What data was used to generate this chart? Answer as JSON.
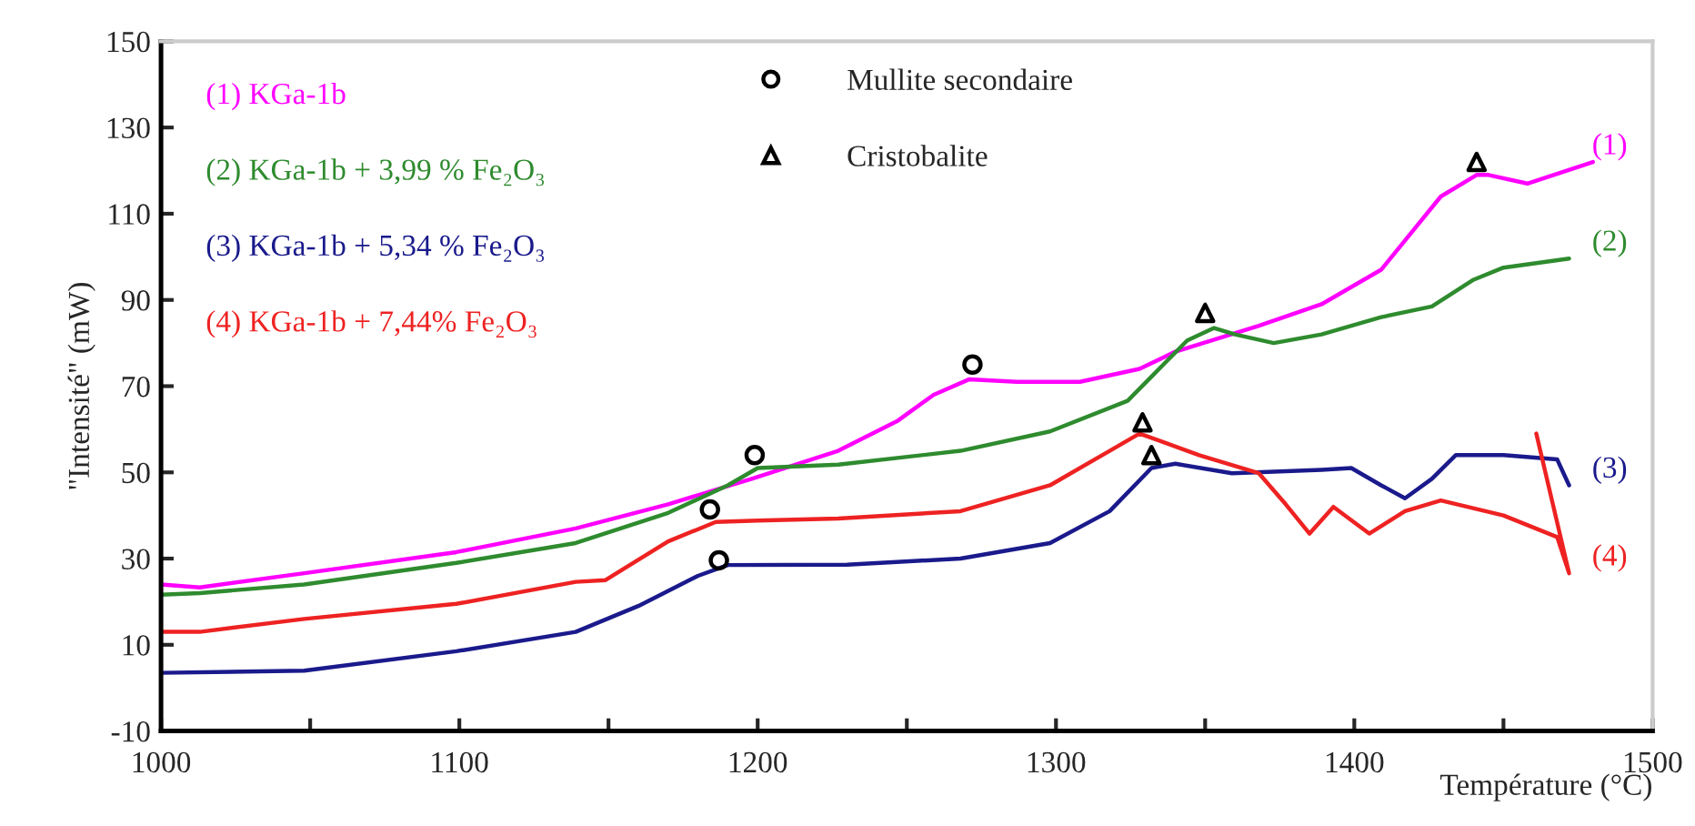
{
  "chart_data": {
    "type": "line",
    "xlabel": "Température (°C)",
    "ylabel": "\"Intensité\" (mW)",
    "xlim": [
      1000,
      1500
    ],
    "ylim": [
      -10,
      150
    ],
    "xticks": [
      1000,
      {
        "value": 1050,
        "label": null
      },
      1100,
      {
        "value": 1150,
        "label": null
      },
      1200,
      {
        "value": 1250,
        "label": null
      },
      1300,
      {
        "value": 1350,
        "label": null
      },
      1400,
      {
        "value": 1450,
        "label": null
      },
      1500
    ],
    "yticks": [
      -10,
      10,
      30,
      50,
      70,
      90,
      110,
      130,
      150
    ],
    "grid": false,
    "legend": "top",
    "marker": "none",
    "line_style": "solid",
    "series": [
      {
        "name": "(1) KGa-1b",
        "color": "#ff00ff",
        "x": [
          1000,
          1013,
          1048,
          1099,
          1139,
          1170,
          1198,
          1227,
          1247,
          1259,
          1271,
          1287,
          1308,
          1328,
          1340,
          1368,
          1389,
          1409,
          1429,
          1441,
          1445,
          1458,
          1480
        ],
        "values": [
          24,
          23.3,
          26.6,
          31.5,
          37,
          42.6,
          48.5,
          55,
          62,
          68,
          71.6,
          71,
          71,
          74,
          78,
          84,
          89,
          97,
          114,
          119,
          119,
          117,
          122
        ]
      },
      {
        "name": "(2) KGa-1b + 3,99 % Fe₂O₃",
        "color": "#2e8b2e",
        "x": [
          1000,
          1013,
          1048,
          1099,
          1139,
          1170,
          1190,
          1200,
          1227,
          1268,
          1298,
          1324,
          1336,
          1344,
          1353,
          1360,
          1373,
          1389,
          1409,
          1426,
          1440,
          1450,
          1472
        ],
        "values": [
          21.6,
          22,
          24,
          29,
          33.6,
          40.6,
          47,
          51,
          51.8,
          55,
          59.5,
          66.6,
          75,
          80.6,
          83.5,
          82,
          80,
          82,
          86,
          88.5,
          94.7,
          97.5,
          99.6
        ]
      },
      {
        "name": "(3) KGa-1b + 5,34 % Fe₂O₃",
        "color": "#1a1a8c",
        "x": [
          1000,
          1048,
          1099,
          1139,
          1160,
          1180,
          1190,
          1230,
          1268,
          1298,
          1318,
          1332,
          1340,
          1359,
          1389,
          1399,
          1409,
          1417,
          1426,
          1434,
          1450,
          1468,
          1472
        ],
        "values": [
          3.5,
          4,
          8.5,
          13,
          19,
          26,
          28.5,
          28.6,
          30,
          33.6,
          41,
          51,
          52,
          49.8,
          50.6,
          51,
          47,
          44,
          48.5,
          54,
          54,
          53,
          47
        ]
      },
      {
        "name": "(4) KGa-1b + 7,44% Fe₂O₃",
        "color": "#ee2222",
        "x": [
          1000,
          1013,
          1048,
          1099,
          1139,
          1149,
          1170,
          1186,
          1200,
          1227,
          1268,
          1298,
          1318,
          1328,
          1348,
          1368,
          1377,
          1385,
          1393,
          1405,
          1417,
          1429,
          1450,
          1468,
          1472,
          1461
        ],
        "values": [
          13,
          13,
          16,
          19.5,
          24.6,
          25,
          34,
          38.5,
          38.8,
          39.3,
          41,
          47,
          55,
          59,
          54,
          49.8,
          42.6,
          35.8,
          42,
          35.8,
          41,
          43.5,
          40,
          35,
          26.6,
          59
        ]
      },
      {
        "name": "Mullite secondaire",
        "type": "scatter",
        "marker": "circle",
        "color": "#000000",
        "x": [
          1184,
          1187,
          1199,
          1272
        ],
        "values": [
          41.4,
          29.6,
          54,
          75
        ]
      },
      {
        "name": "Cristobalite",
        "type": "scatter",
        "marker": "triangle",
        "color": "#000000",
        "x": [
          1329,
          1332,
          1350,
          1441
        ],
        "values": [
          61.6,
          54,
          87,
          122
        ]
      }
    ],
    "annotations": [
      "(1)",
      "(2)",
      "(3)",
      "(4)"
    ]
  }
}
